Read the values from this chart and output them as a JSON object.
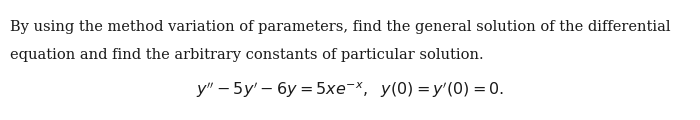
{
  "line1": "By using the method variation of parameters, find the general solution of the differential",
  "line2": "equation and find the arbitrary constants of particular solution.",
  "bg_color": "#ffffff",
  "text_color": "#1a1a1a",
  "font_size_body": 10.5,
  "font_size_eq": 11.5,
  "fig_width": 7.0,
  "fig_height": 1.2
}
